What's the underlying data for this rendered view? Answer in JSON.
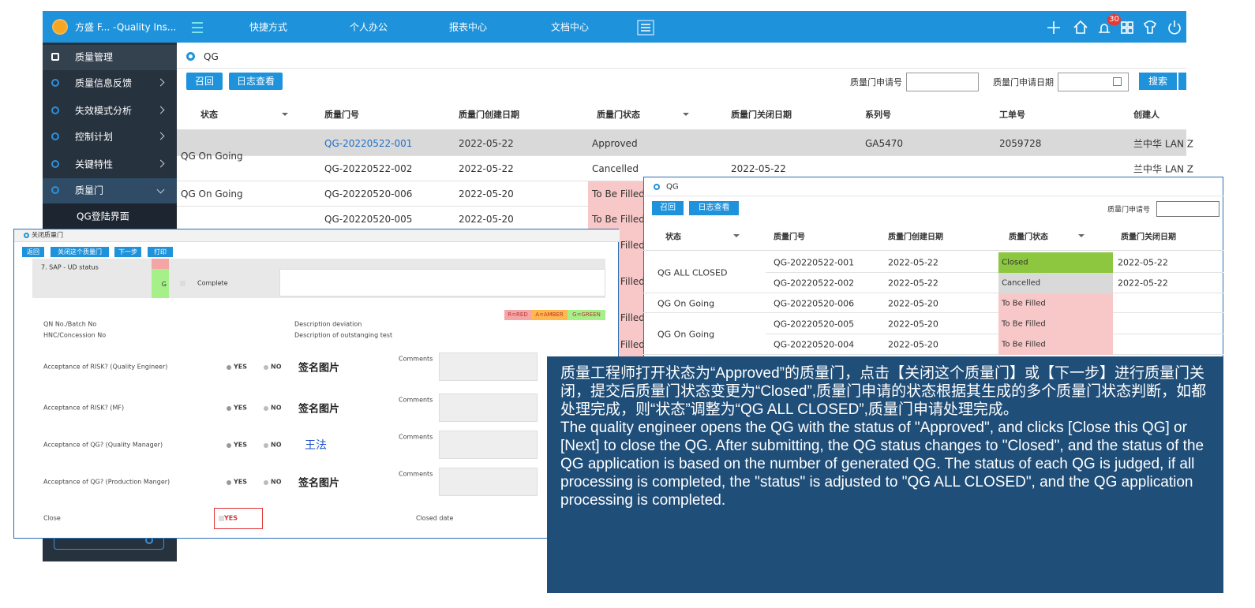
{
  "app": {
    "brand": "方盛 F... -Quality Ins...",
    "nav": [
      "快捷方式",
      "个人办公",
      "报表中心",
      "文档中心"
    ],
    "badge": "30"
  },
  "sidebar": {
    "items": [
      "质量管理",
      "质量信息反馈",
      "失效模式分析",
      "控制计划",
      "关键特性",
      "质量门",
      "QG登陆界面"
    ]
  },
  "main": {
    "tab": "QG",
    "buttons": [
      "召回",
      "日志查看"
    ],
    "filters": [
      "质量门申请号",
      "质量门申请日期"
    ],
    "search": "搜索",
    "columns": [
      "状态",
      "质量门号",
      "质量门创建日期",
      "质量门状态",
      "质量门关闭日期",
      "系列号",
      "工单号",
      "创建人"
    ],
    "rows": [
      [
        "QG On Going",
        "QG-20220522-001",
        "2022-05-22",
        "Approved",
        null,
        "GA5470",
        "2059728",
        "兰中华 LAN Z"
      ],
      [
        null,
        "QG-20220522-002",
        "2022-05-22",
        "Cancelled",
        "2022-05-22",
        null,
        null,
        "兰中华 LAN Z"
      ],
      [
        "QG On Going",
        "QG-20220520-006",
        "2022-05-20",
        "To Be Filled",
        null,
        null,
        null,
        null
      ],
      [
        null,
        "QG-20220520-005",
        "2022-05-20",
        "To Be Filled",
        null,
        null,
        null,
        null
      ],
      [
        null,
        null,
        null,
        "To Be Filled",
        null,
        null,
        null,
        null
      ],
      [
        null,
        null,
        null,
        "To Be Filled",
        null,
        null,
        null,
        null
      ],
      [
        null,
        null,
        null,
        "To Be Filled",
        null,
        null,
        null,
        null
      ],
      [
        null,
        null,
        null,
        "To Be Filled",
        null,
        null,
        null,
        null
      ]
    ],
    "status_fill": [
      null,
      null,
      "#f8c8c8",
      "#f8c8c8",
      "#f8c8c8",
      "#f8c8c8",
      "#f8c8c8",
      "#f8c8c8"
    ]
  },
  "panel": {
    "tab": "QG",
    "buttons": [
      "召回",
      "日志查看"
    ],
    "filter": "质量门申请号",
    "columns": [
      "状态",
      "质量门号",
      "质量门创建日期",
      "质量门状态",
      "质量门关闭日期"
    ],
    "rows": [
      [
        "QG ALL CLOSED",
        "QG-20220522-001",
        "2022-05-22",
        "Closed",
        "2022-05-22"
      ],
      [
        null,
        "QG-20220522-002",
        "2022-05-22",
        "Cancelled",
        "2022-05-22"
      ],
      [
        "QG On Going",
        "QG-20220520-006",
        "2022-05-20",
        "To Be Filled",
        null
      ],
      [
        "QG On Going",
        "QG-20220520-005",
        "2022-05-20",
        "To Be Filled",
        null
      ],
      [
        null,
        "QG-20220520-004",
        "2022-05-20",
        "To Be Filled",
        null
      ]
    ],
    "status_fill": [
      "#8dc63f",
      "#d9d9d9",
      "#f8c8c8",
      "#f8c8c8",
      "#f8c8c8"
    ]
  },
  "dialog": {
    "title": "关闭质量门",
    "buttons": [
      "返回",
      "关闭这个质量门",
      "下一步",
      "打印"
    ],
    "step": "7. SAP - UD status",
    "rating": "G",
    "check": "Complete",
    "legend": [
      {
        "text": "R=RED",
        "color": "#f4a6a6"
      },
      {
        "text": "A=AMBER",
        "color": "#ffb84d"
      },
      {
        "text": "G=GREEN",
        "color": "#a6f08a"
      }
    ],
    "fields": [
      "QN No./Batch No",
      "HNC/Concession No",
      "Description deviation",
      "Description of outstanging test"
    ],
    "approvals": [
      {
        "label": "Acceptance of RISK? (Quality Engineer)",
        "signature": "签名图片"
      },
      {
        "label": "Acceptance of RISK? (MF)",
        "signature": "签名图片"
      },
      {
        "label": "Acceptance of QG? (Quality Manager)",
        "signature": "王法"
      },
      {
        "label": "Acceptance of QG? (Production Manger)",
        "signature": "签名图片"
      }
    ],
    "yes": "YES",
    "no": "NO",
    "comments": "Comments",
    "close": {
      "label": "Close",
      "value": "YES",
      "date_label": "Closed date"
    }
  },
  "note": {
    "zh": "质量工程师打开状态为“Approved”的质量门，点击【关闭这个质量门】或【下一步】进行质量门关闭，提交后质量门状态变更为“Closed”,质量门申请的状态根据其生成的多个质量门状态判断，如都处理完成，则“状态”调整为“QG ALL CLOSED”,质量门申请处理完成。",
    "en": "The quality engineer opens the QG with the status of \"Approved\", and clicks [Close this QG] or [Next] to close the QG. After submitting, the QG status changes to \"Closed\", and the status of the QG application is based on the number of generated QG. The status of each QG is judged, if all processing is completed, the \"status\" is adjusted to \"QG ALL CLOSED\", and the QG application processing is completed."
  }
}
